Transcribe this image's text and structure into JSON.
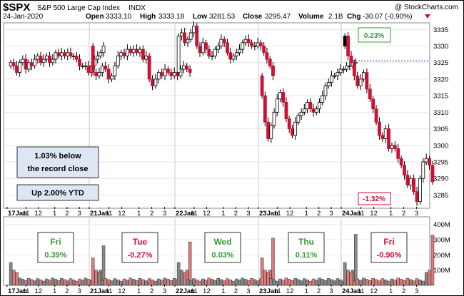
{
  "header": {
    "symbol": "$SPX",
    "name": "S&P 500 Large Cap Index",
    "exchange": "INDX",
    "copyright": "@ StockCharts.com",
    "date": "24-Jan-2020",
    "open_label": "Open",
    "open": "3333.10",
    "high_label": "High",
    "high": "3333.18",
    "low_label": "Low",
    "low": "3281.53",
    "close_label": "Close",
    "close": "3295.47",
    "volume_label": "Volume",
    "volume": "2.1B",
    "chg_label": "Chg",
    "chg": "-30.07 (-0.90%)"
  },
  "colors": {
    "up": "#ffffff",
    "down": "#cc1133",
    "up_edge": "#000000",
    "green": "#2e9e2e",
    "red": "#cc1133",
    "volume_up": "#888888",
    "volume_down": "#e07a7a",
    "dotted_ref": "#1a2bb0",
    "box_fill": "#dde6f3"
  },
  "annotations": {
    "record_note_line1": "1.03% below",
    "record_note_line2": "the record close",
    "ytd_note": "Up 2.00% YTD",
    "gain_badge": "0.23%",
    "loss_badge": "-1.32%"
  },
  "day_labels": [
    {
      "day": "Fri",
      "pct": "0.39%",
      "color": "green"
    },
    {
      "day": "Tue",
      "pct": "-0.27%",
      "color": "red"
    },
    {
      "day": "Wed",
      "pct": "0.03%",
      "color": "green"
    },
    {
      "day": "Thu",
      "pct": "0.11%",
      "color": "green"
    },
    {
      "day": "Fri",
      "pct": "-0.90%",
      "color": "red"
    }
  ],
  "chart_data": {
    "type": "candlestick",
    "price_axis": {
      "ylim": [
        3281,
        3337
      ],
      "ticks": [
        "3285",
        "3290",
        "3295",
        "3300",
        "3305",
        "3310",
        "3315",
        "3320",
        "3325",
        "3330",
        "3335"
      ]
    },
    "volume_axis": {
      "ylim": [
        0,
        450
      ],
      "ticks": [
        "100M",
        "200M",
        "300M",
        "400M"
      ]
    },
    "x_tick_labels": [
      [
        "17Jan",
        "11",
        "12",
        "1",
        "2",
        "3"
      ],
      [
        "21Jan",
        "11",
        "12",
        "1",
        "2",
        "3"
      ],
      [
        "22Jan",
        "11",
        "12",
        "1",
        "2",
        "3"
      ],
      [
        "23Jan",
        "11",
        "12",
        "1",
        "2",
        "3"
      ],
      [
        "24Jan",
        "11",
        "12",
        "1",
        "2",
        "3"
      ]
    ],
    "reference_line": 3325.5,
    "sessions": [
      {
        "date": "17Jan",
        "closes": [
          3325,
          3324,
          3322,
          3325,
          3326,
          3323,
          3325,
          3324,
          3326,
          3327,
          3325,
          3326,
          3327,
          3325,
          3326,
          3328,
          3327,
          3328,
          3327,
          3328,
          3327,
          3327,
          3326,
          3324,
          3324,
          3324,
          3322,
          3324,
          3326,
          3327,
          3328,
          3330
        ]
      },
      {
        "date": "21Jan",
        "closes": [
          3322,
          3321,
          3322,
          3324,
          3323,
          3320,
          3321,
          3324,
          3327,
          3328,
          3327,
          3329,
          3328,
          3329,
          3328,
          3329,
          3326,
          3327,
          3320,
          3318,
          3320,
          3322,
          3321,
          3323,
          3322,
          3321,
          3322,
          3321,
          3323,
          3324,
          3323,
          3322
        ]
      },
      {
        "date": "22Jan",
        "closes": [
          3333,
          3334,
          3331,
          3332,
          3334,
          3336,
          3330,
          3328,
          3331,
          3329,
          3327,
          3327,
          3329,
          3330,
          3332,
          3331,
          3328,
          3326,
          3327,
          3328,
          3329,
          3331,
          3332,
          3331,
          3330,
          3330,
          3331,
          3330,
          3328,
          3326,
          3324,
          3321
        ]
      },
      {
        "date": "23Jan",
        "closes": [
          3315,
          3307,
          3302,
          3306,
          3310,
          3314,
          3316,
          3313,
          3308,
          3305,
          3303,
          3307,
          3309,
          3310,
          3311,
          3313,
          3311,
          3310,
          3311,
          3313,
          3315,
          3318,
          3319,
          3321,
          3321,
          3322,
          3323,
          3323,
          3324,
          3324,
          3325,
          3325
        ]
      },
      {
        "date": "24Jan",
        "closes": [
          3333,
          3327,
          3325,
          3321,
          3318,
          3320,
          3322,
          3317,
          3314,
          3311,
          3307,
          3303,
          3302,
          3305,
          3299,
          3300,
          3299,
          3296,
          3294,
          3291,
          3288,
          3290,
          3286,
          3283,
          3290,
          3295,
          3296,
          3294,
          3289
        ]
      }
    ],
    "volume_note": "Intraday 15-minute candles; volume bars high at open and close of each session"
  }
}
